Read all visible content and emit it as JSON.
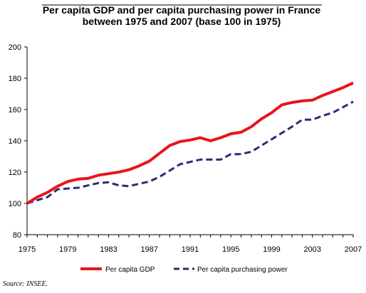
{
  "chart_data": {
    "type": "line",
    "title_lines": [
      "Per capita GDP and per capita purchasing power in France",
      "between 1975 and 2007 (base 100 in 1975)"
    ],
    "xlabel": "",
    "ylabel": "",
    "xlim": [
      1975,
      2007
    ],
    "ylim": [
      80,
      200
    ],
    "x_ticks": [
      1975,
      1979,
      1983,
      1987,
      1991,
      1995,
      1999,
      2003,
      2007
    ],
    "y_ticks": [
      80,
      100,
      120,
      140,
      160,
      180,
      200
    ],
    "grid": false,
    "legend_position": "bottom",
    "x": [
      1975,
      1976,
      1977,
      1978,
      1979,
      1980,
      1981,
      1982,
      1983,
      1984,
      1985,
      1986,
      1987,
      1988,
      1989,
      1990,
      1991,
      1992,
      1993,
      1994,
      1995,
      1996,
      1997,
      1998,
      1999,
      2000,
      2001,
      2002,
      2003,
      2004,
      2005,
      2006,
      2007
    ],
    "series": [
      {
        "name": "Per capita GDP",
        "color": "#e8141b",
        "style": "solid",
        "values": [
          100,
          104,
          107,
          111,
          114,
          115.5,
          116,
          118,
          119,
          120,
          121.5,
          124,
          127,
          132,
          137,
          139.5,
          140.5,
          142,
          140,
          142,
          144.5,
          145.5,
          149,
          154,
          158,
          163,
          164.5,
          165.5,
          166,
          169,
          171.5,
          174,
          177
        ]
      },
      {
        "name": "Per capita purchasing power",
        "color": "#2b2b7a",
        "style": "dashed",
        "values": [
          100,
          102,
          104,
          109,
          109.5,
          110,
          111.5,
          113,
          113.5,
          111.5,
          111,
          112.5,
          114,
          117,
          121,
          125,
          126.5,
          128,
          128,
          128,
          131.5,
          131.5,
          133,
          137,
          141,
          145,
          149,
          153.5,
          153.5,
          156,
          158,
          161.5,
          165
        ]
      }
    ]
  },
  "source_text": "Source: INSEE."
}
